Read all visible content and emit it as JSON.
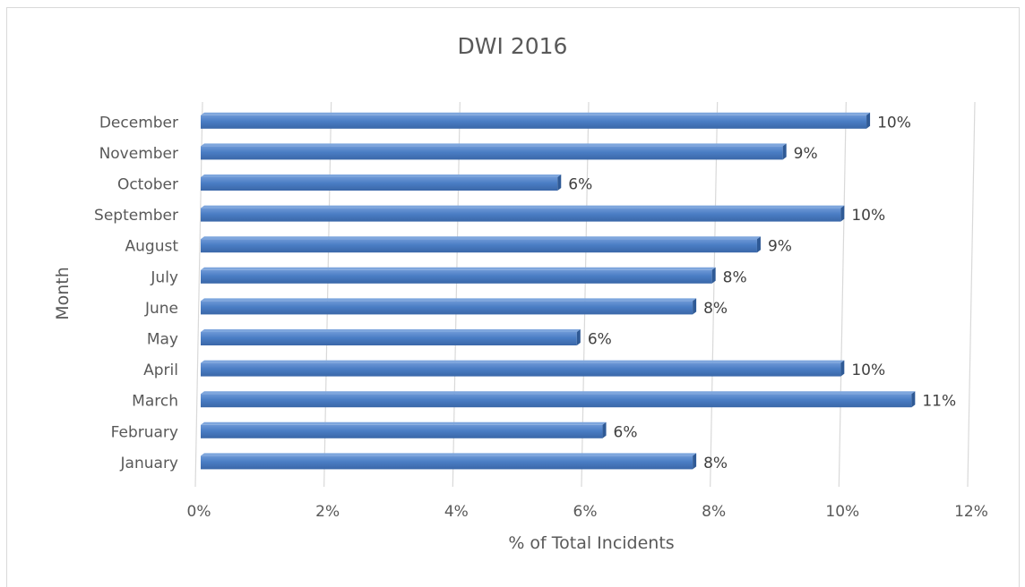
{
  "chart_data": {
    "type": "bar",
    "orientation": "horizontal",
    "title": "DWI 2016",
    "xlabel": "% of Total Incidents",
    "ylabel": "Month",
    "categories": [
      "January",
      "February",
      "March",
      "April",
      "May",
      "June",
      "July",
      "August",
      "September",
      "October",
      "November",
      "December"
    ],
    "values": [
      7.7,
      6.3,
      11.1,
      10.0,
      5.9,
      7.7,
      8.0,
      8.7,
      10.0,
      5.6,
      9.1,
      10.4
    ],
    "data_labels": [
      "8%",
      "6%",
      "11%",
      "10%",
      "6%",
      "8%",
      "8%",
      "9%",
      "10%",
      "6%",
      "9%",
      "10%"
    ],
    "xlim": [
      0,
      12
    ],
    "xticks": [
      "0%",
      "2%",
      "4%",
      "6%",
      "8%",
      "10%",
      "12%"
    ],
    "grid": true,
    "legend": "none",
    "bar_color": "#4a7dc4"
  }
}
